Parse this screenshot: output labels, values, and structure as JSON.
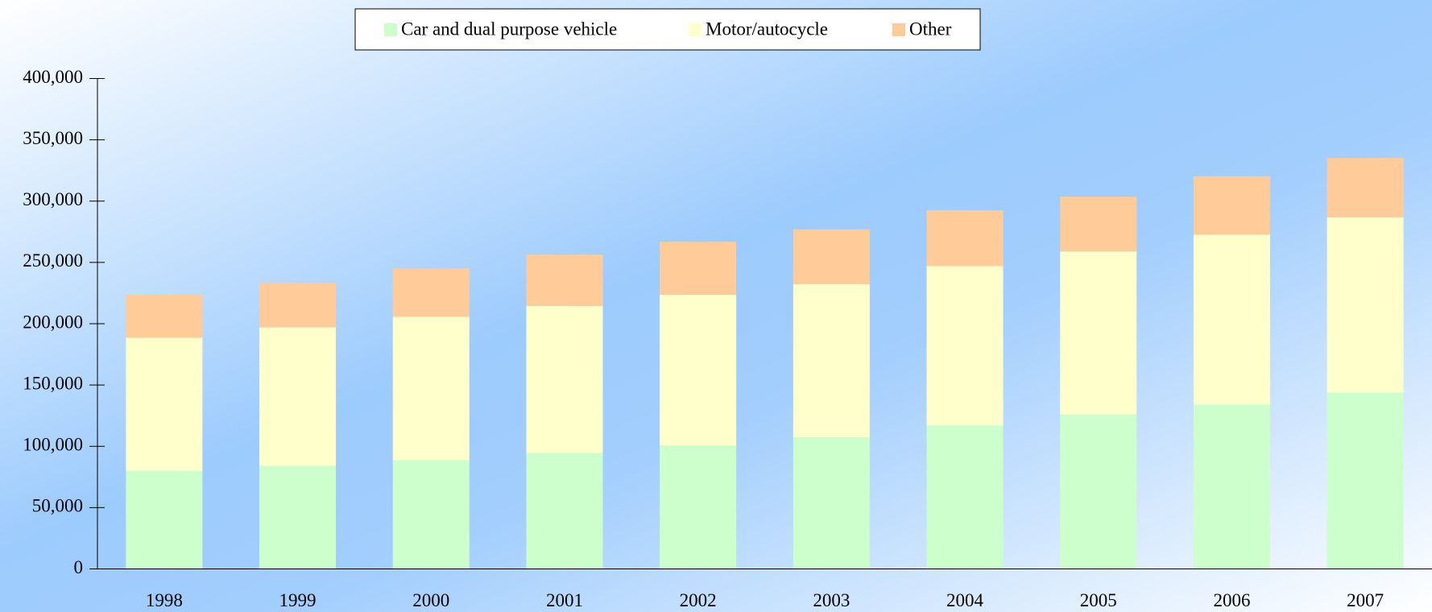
{
  "chart_data": {
    "type": "stacked_bar",
    "categories": [
      "1998",
      "1999",
      "2000",
      "2001",
      "2002",
      "2003",
      "2004",
      "2005",
      "2006",
      "2007"
    ],
    "series": [
      {
        "name": "Car and dual purpose vehicle",
        "color": "#ccffcc",
        "values": [
          80000,
          84000,
          88600,
          94600,
          100600,
          107300,
          117000,
          125900,
          134000,
          143800
        ]
      },
      {
        "name": "Motor/autocycle",
        "color": "#ffffcc",
        "values": [
          108500,
          113000,
          117000,
          120000,
          123000,
          125000,
          130000,
          133000,
          138600,
          143000
        ]
      },
      {
        "name": "Other",
        "color": "#ffcc99",
        "values": [
          35000,
          36500,
          39500,
          41700,
          43200,
          44700,
          45500,
          44700,
          47700,
          48400
        ]
      }
    ],
    "ylim": [
      0,
      400000
    ],
    "yticks": [
      {
        "value": 0,
        "label": "0"
      },
      {
        "value": 50000,
        "label": "50,000"
      },
      {
        "value": 100000,
        "label": "100,000"
      },
      {
        "value": 150000,
        "label": "150,000"
      },
      {
        "value": 200000,
        "label": "200,000"
      },
      {
        "value": 250000,
        "label": "250,000"
      },
      {
        "value": 300000,
        "label": "300,000"
      },
      {
        "value": 350000,
        "label": "350,000"
      },
      {
        "value": 400000,
        "label": "400,000"
      }
    ],
    "grid": false,
    "legend": "top"
  }
}
